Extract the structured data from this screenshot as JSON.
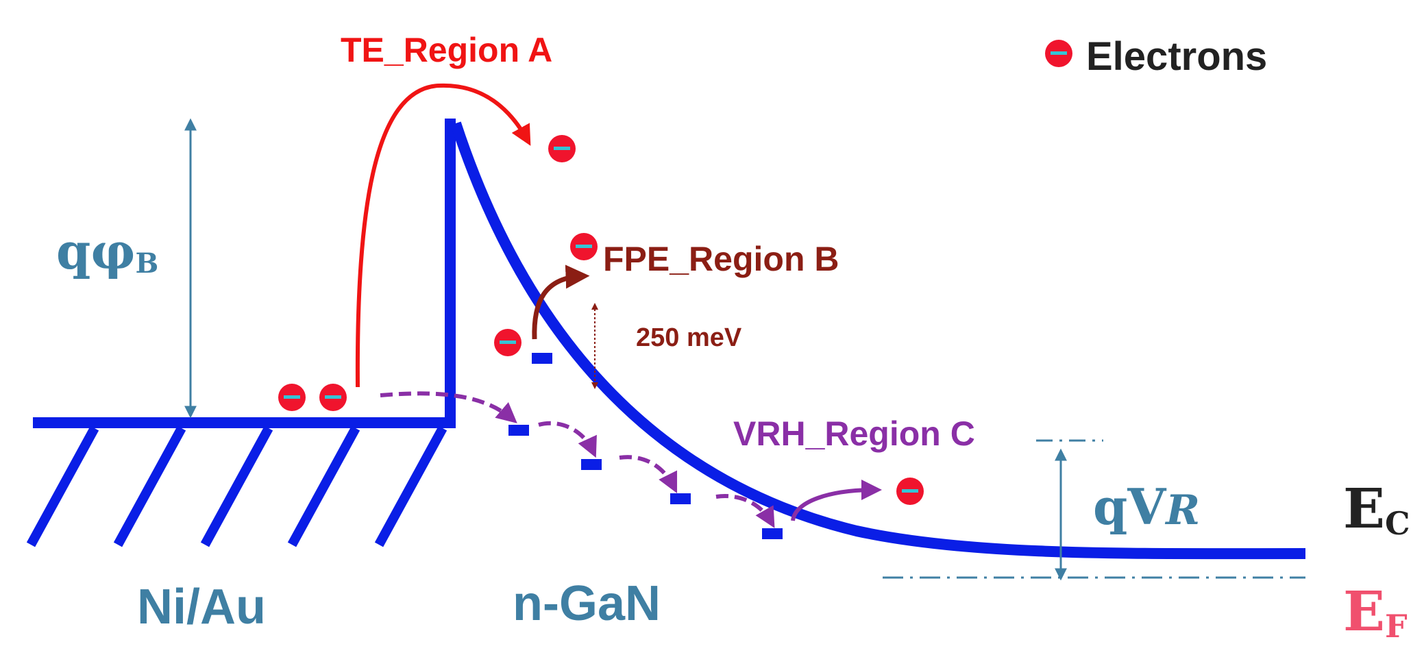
{
  "legend": {
    "label": "Electrons",
    "symbol": "electron-icon"
  },
  "labels": {
    "te": "TE_Region A",
    "fpe": "FPE_Region B",
    "vrh": "VRH_Region C",
    "energy": "250 meV",
    "metal": "Ni/Au",
    "semiconductor": "n-GaN"
  },
  "barrier": {
    "q": "q",
    "phi": "φ",
    "sub": "B"
  },
  "reverse_bias": {
    "q": "qV",
    "sub": "R"
  },
  "ec": {
    "main": "E",
    "sub": "C"
  },
  "ef": {
    "main": "E",
    "sub": "F"
  },
  "colors": {
    "band": "#0a1ee6",
    "te": "#f01414",
    "fpe": "#8b1e14",
    "vrh": "#8a2fa6",
    "steel": "#3f7fa3",
    "ef": "#f0506e",
    "ec": "#222222",
    "electron": "#f0142d",
    "electron_dash": "#35c4d6"
  }
}
